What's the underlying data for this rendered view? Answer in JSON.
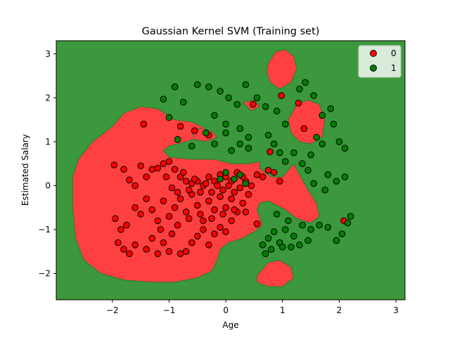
{
  "chart_data": {
    "type": "scatter",
    "title": "Gaussian Kernel SVM (Training set)",
    "xlabel": "Age",
    "ylabel": "Estimated Salary",
    "xlim": [
      -2.99,
      3.16
    ],
    "ylim": [
      -2.6,
      3.3
    ],
    "xticks": [
      "−2",
      "−1",
      "0",
      "1",
      "2",
      "3"
    ],
    "xtick_values": [
      -2,
      -1,
      0,
      1,
      2,
      3
    ],
    "yticks": [
      "−2",
      "−1",
      "0",
      "1",
      "2",
      "3"
    ],
    "ytick_values": [
      -2,
      -1,
      0,
      1,
      2,
      3
    ],
    "grid": false,
    "legend_position": "top-right",
    "colors": {
      "region_0": "#ff4040",
      "region_1": "#3c983c",
      "point_0": "#ff0000",
      "point_1": "#008000",
      "boundary": "#2a7a2a"
    },
    "decision_regions": [
      {
        "class": "0",
        "polygon": [
          [
            -2.6,
            0.6
          ],
          [
            -2.35,
            1.0
          ],
          [
            -2.0,
            1.35
          ],
          [
            -1.8,
            1.65
          ],
          [
            -1.5,
            1.8
          ],
          [
            -1.2,
            1.75
          ],
          [
            -0.9,
            1.5
          ],
          [
            -0.6,
            1.45
          ],
          [
            -0.35,
            1.3
          ],
          [
            -0.45,
            1.1
          ],
          [
            -0.7,
            1.0
          ],
          [
            -1.0,
            0.9
          ],
          [
            -1.1,
            0.8
          ],
          [
            -1.0,
            0.65
          ],
          [
            -0.6,
            0.6
          ],
          [
            -0.2,
            0.6
          ],
          [
            0.1,
            0.5
          ],
          [
            0.4,
            0.5
          ],
          [
            0.6,
            0.55
          ],
          [
            0.6,
            0.4
          ],
          [
            0.7,
            0.3
          ],
          [
            0.8,
            0.2
          ],
          [
            1.0,
            0.2
          ],
          [
            1.2,
            0.5
          ],
          [
            1.3,
            0.25
          ],
          [
            1.45,
            -0.1
          ],
          [
            1.6,
            -0.4
          ],
          [
            1.65,
            -0.7
          ],
          [
            1.5,
            -0.85
          ],
          [
            1.25,
            -0.75
          ],
          [
            1.05,
            -0.55
          ],
          [
            0.9,
            -0.45
          ],
          [
            0.75,
            -0.35
          ],
          [
            0.6,
            -0.4
          ],
          [
            0.55,
            -0.55
          ],
          [
            0.65,
            -0.9
          ],
          [
            0.5,
            -1.05
          ],
          [
            0.3,
            -1.2
          ],
          [
            0.05,
            -1.3
          ],
          [
            -0.1,
            -1.45
          ],
          [
            -0.15,
            -1.7
          ],
          [
            -0.25,
            -1.95
          ],
          [
            -0.5,
            -2.1
          ],
          [
            -0.9,
            -2.2
          ],
          [
            -1.3,
            -2.2
          ],
          [
            -1.8,
            -2.15
          ],
          [
            -2.2,
            -2.0
          ],
          [
            -2.5,
            -1.7
          ],
          [
            -2.65,
            -1.2
          ],
          [
            -2.7,
            -0.5
          ],
          [
            -2.7,
            0.2
          ]
        ]
      },
      {
        "class": "0",
        "polygon": [
          [
            0.75,
            2.8
          ],
          [
            0.88,
            3.05
          ],
          [
            1.05,
            3.1
          ],
          [
            1.2,
            2.95
          ],
          [
            1.25,
            2.65
          ],
          [
            1.15,
            2.35
          ],
          [
            0.95,
            2.2
          ],
          [
            0.78,
            2.35
          ],
          [
            0.72,
            2.6
          ]
        ]
      },
      {
        "class": "0",
        "polygon": [
          [
            1.1,
            1.5
          ],
          [
            1.25,
            1.85
          ],
          [
            1.45,
            1.95
          ],
          [
            1.65,
            1.85
          ],
          [
            1.75,
            1.5
          ],
          [
            1.7,
            1.1
          ],
          [
            1.5,
            0.95
          ],
          [
            1.3,
            1.0
          ],
          [
            1.15,
            1.2
          ]
        ]
      },
      {
        "class": "0",
        "polygon": [
          [
            0.55,
            -2.05
          ],
          [
            0.75,
            -1.75
          ],
          [
            0.95,
            -1.7
          ],
          [
            1.15,
            -1.85
          ],
          [
            1.2,
            -2.1
          ],
          [
            1.0,
            -2.3
          ],
          [
            0.75,
            -2.3
          ],
          [
            0.55,
            -2.2
          ]
        ]
      },
      {
        "class": "0",
        "polygon": [
          [
            -0.6,
            1.25
          ],
          [
            -0.45,
            1.3
          ],
          [
            -0.25,
            1.25
          ],
          [
            -0.15,
            1.1
          ],
          [
            -0.35,
            1.0
          ],
          [
            -0.55,
            1.05
          ]
        ]
      },
      {
        "class": "0",
        "polygon": [
          [
            0.3,
            1.9
          ],
          [
            0.5,
            1.95
          ],
          [
            0.6,
            1.8
          ],
          [
            0.45,
            1.7
          ]
        ]
      }
    ],
    "series": [
      {
        "name": "0",
        "points": [
          [
            -1.97,
            0.47
          ],
          [
            -1.8,
            0.37
          ],
          [
            -1.7,
            0.13
          ],
          [
            -1.6,
            0.0
          ],
          [
            -1.5,
            0.45
          ],
          [
            -1.4,
            0.2
          ],
          [
            -1.3,
            0.37
          ],
          [
            -1.2,
            0.4
          ],
          [
            -1.1,
            0.5
          ],
          [
            -1.0,
            0.55
          ],
          [
            -0.9,
            0.37
          ],
          [
            -0.8,
            0.2
          ],
          [
            -0.7,
            0.1
          ],
          [
            -0.6,
            0.05
          ],
          [
            -0.5,
            0.1
          ],
          [
            -0.4,
            0.0
          ],
          [
            -0.3,
            0.2
          ],
          [
            -0.2,
            0.1
          ],
          [
            -0.1,
            0.25
          ],
          [
            0.0,
            0.2
          ],
          [
            0.1,
            0.1
          ],
          [
            0.2,
            0.3
          ],
          [
            0.3,
            0.2
          ],
          [
            -1.95,
            -0.75
          ],
          [
            -1.85,
            -1.0
          ],
          [
            -1.75,
            -0.9
          ],
          [
            -1.6,
            -0.5
          ],
          [
            -1.5,
            -0.65
          ],
          [
            -1.4,
            -0.3
          ],
          [
            -1.3,
            -0.55
          ],
          [
            -1.2,
            -0.8
          ],
          [
            -1.1,
            -0.35
          ],
          [
            -1.0,
            -0.7
          ],
          [
            -0.9,
            -0.5
          ],
          [
            -0.8,
            -0.3
          ],
          [
            -0.7,
            -0.6
          ],
          [
            -0.6,
            -0.2
          ],
          [
            -0.5,
            -0.45
          ],
          [
            -0.4,
            -0.8
          ],
          [
            -0.3,
            -0.35
          ],
          [
            -0.2,
            -0.55
          ],
          [
            -0.1,
            -0.25
          ],
          [
            0.0,
            -0.5
          ],
          [
            0.1,
            -0.3
          ],
          [
            0.2,
            -0.6
          ],
          [
            0.3,
            -0.4
          ],
          [
            0.4,
            -0.2
          ],
          [
            -1.9,
            -1.3
          ],
          [
            -1.8,
            -1.45
          ],
          [
            -1.7,
            -1.55
          ],
          [
            -1.6,
            -1.35
          ],
          [
            -1.4,
            -1.45
          ],
          [
            -1.3,
            -1.2
          ],
          [
            -1.2,
            -1.55
          ],
          [
            -1.1,
            -1.3
          ],
          [
            -1.0,
            -1.5
          ],
          [
            -0.8,
            -1.55
          ],
          [
            -0.7,
            -1.5
          ],
          [
            -0.6,
            -1.3
          ],
          [
            -0.5,
            -1.15
          ],
          [
            -0.4,
            -1.0
          ],
          [
            -0.3,
            -1.35
          ],
          [
            -0.2,
            -1.1
          ],
          [
            -0.1,
            -0.95
          ],
          [
            0.0,
            -1.05
          ],
          [
            0.1,
            -0.8
          ],
          [
            -1.45,
            1.4
          ],
          [
            -0.8,
            1.35
          ],
          [
            -0.55,
            1.25
          ],
          [
            -0.3,
            1.15
          ],
          [
            0.48,
            1.85
          ],
          [
            0.98,
            2.05
          ],
          [
            1.28,
            1.88
          ],
          [
            1.38,
            1.3
          ],
          [
            0.78,
            0.77
          ],
          [
            0.75,
            0.35
          ],
          [
            0.55,
            -0.87
          ],
          [
            2.08,
            -0.8
          ],
          [
            -1.05,
            0.2
          ],
          [
            -0.95,
            -0.05
          ],
          [
            -0.85,
            -0.15
          ],
          [
            -0.75,
            0.3
          ],
          [
            -0.65,
            -0.1
          ],
          [
            -0.55,
            0.15
          ],
          [
            -0.45,
            -0.15
          ],
          [
            -0.35,
            0.05
          ],
          [
            -0.25,
            -0.15
          ],
          [
            -0.15,
            0.0
          ],
          [
            -0.05,
            -0.1
          ],
          [
            0.05,
            0.0
          ],
          [
            0.15,
            -0.15
          ],
          [
            0.25,
            -0.05
          ],
          [
            0.35,
            0.1
          ],
          [
            0.45,
            0.0
          ],
          [
            0.55,
            0.25
          ],
          [
            0.65,
            0.2
          ],
          [
            0.85,
            0.3
          ],
          [
            0.95,
            0.1
          ],
          [
            -1.15,
            -1.0
          ],
          [
            -0.95,
            -1.1
          ],
          [
            -0.85,
            -0.9
          ],
          [
            -0.65,
            -0.75
          ],
          [
            -0.45,
            -0.65
          ],
          [
            -0.25,
            -0.75
          ],
          [
            -0.05,
            -0.65
          ],
          [
            0.15,
            -0.55
          ],
          [
            0.35,
            -0.6
          ]
        ]
      },
      {
        "name": "1",
        "points": [
          [
            -1.1,
            1.97
          ],
          [
            -0.9,
            2.25
          ],
          [
            -0.75,
            1.9
          ],
          [
            -0.5,
            2.3
          ],
          [
            -0.3,
            2.25
          ],
          [
            -0.1,
            2.15
          ],
          [
            0.05,
            2.0
          ],
          [
            0.2,
            1.85
          ],
          [
            0.35,
            2.3
          ],
          [
            -0.2,
            1.6
          ],
          [
            0.0,
            1.4
          ],
          [
            0.25,
            1.3
          ],
          [
            0.4,
            1.1
          ],
          [
            0.55,
            2.0
          ],
          [
            0.7,
            1.8
          ],
          [
            0.9,
            1.7
          ],
          [
            1.05,
            1.4
          ],
          [
            1.3,
            2.2
          ],
          [
            1.4,
            2.35
          ],
          [
            1.55,
            2.05
          ],
          [
            1.7,
            1.6
          ],
          [
            1.85,
            1.75
          ],
          [
            1.9,
            1.4
          ],
          [
            2.0,
            1.0
          ],
          [
            2.1,
            0.85
          ],
          [
            1.6,
            1.1
          ],
          [
            1.7,
            0.95
          ],
          [
            1.5,
            0.7
          ],
          [
            1.35,
            0.5
          ],
          [
            1.2,
            0.75
          ],
          [
            1.05,
            0.55
          ],
          [
            0.95,
            0.75
          ],
          [
            0.85,
            0.95
          ],
          [
            0.75,
            1.15
          ],
          [
            -1.0,
            1.55
          ],
          [
            -0.85,
            1.05
          ],
          [
            -0.6,
            0.9
          ],
          [
            -0.35,
            1.2
          ],
          [
            -0.2,
            0.95
          ],
          [
            0.0,
            1.2
          ],
          [
            0.1,
            0.8
          ],
          [
            0.25,
            0.95
          ],
          [
            0.4,
            0.85
          ],
          [
            1.45,
            0.35
          ],
          [
            1.55,
            0.05
          ],
          [
            1.75,
            -0.1
          ],
          [
            1.8,
            0.25
          ],
          [
            1.95,
            0.1
          ],
          [
            2.1,
            0.2
          ],
          [
            2.2,
            -0.7
          ],
          [
            2.15,
            -0.85
          ],
          [
            2.05,
            -1.1
          ],
          [
            1.95,
            -1.25
          ],
          [
            1.8,
            -0.95
          ],
          [
            1.65,
            -0.9
          ],
          [
            1.5,
            -1.0
          ],
          [
            1.35,
            -0.9
          ],
          [
            1.2,
            -1.15
          ],
          [
            1.05,
            -1.0
          ],
          [
            0.95,
            -1.3
          ],
          [
            0.85,
            -1.05
          ],
          [
            0.75,
            -1.2
          ],
          [
            0.65,
            -1.35
          ],
          [
            1.15,
            -1.4
          ],
          [
            1.3,
            -1.35
          ],
          [
            1.45,
            -1.25
          ],
          [
            1.0,
            -1.4
          ],
          [
            0.8,
            -1.45
          ],
          [
            0.7,
            -1.55
          ],
          [
            0.9,
            -0.65
          ],
          [
            1.1,
            -0.8
          ],
          [
            0.15,
            0.15
          ],
          [
            0.25,
            0.25
          ],
          [
            0.35,
            0.05
          ],
          [
            0.0,
            0.3
          ],
          [
            -0.1,
            0.15
          ]
        ]
      }
    ]
  }
}
